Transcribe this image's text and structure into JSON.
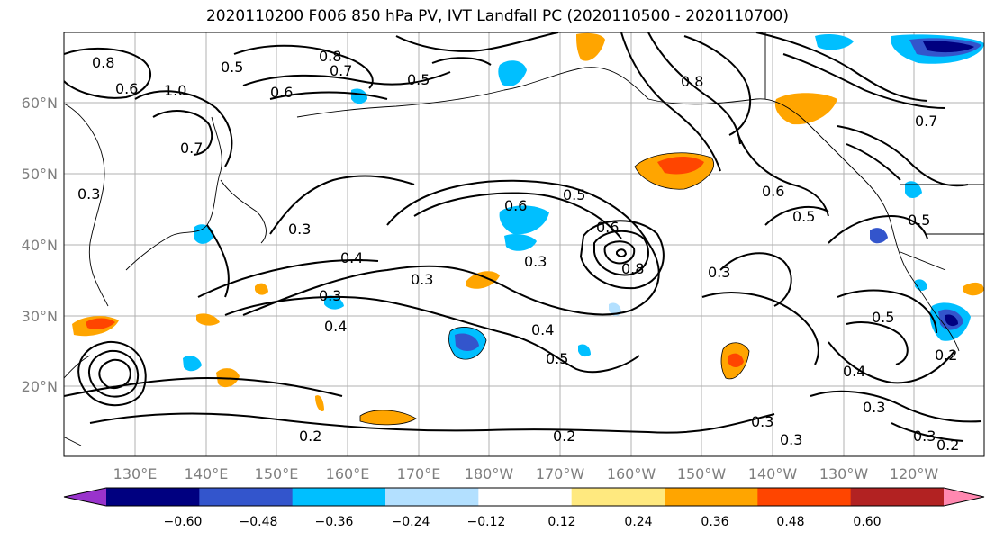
{
  "title": "2020110200 F006 850 hPa PV, IVT Landfall PC (2020110500 - 2020110700)",
  "map": {
    "lat_labels": [
      "60°N",
      "50°N",
      "40°N",
      "30°N",
      "20°N"
    ],
    "lon_labels": [
      "130°E",
      "140°E",
      "150°E",
      "160°E",
      "170°E",
      "180°W",
      "170°W",
      "160°W",
      "150°W",
      "140°W",
      "130°W",
      "120°W"
    ],
    "contour_labels": [
      "1.0",
      "0.8",
      "0.7",
      "0.6",
      "0.5",
      "0.8",
      "0.7",
      "0.6",
      "0.5",
      "0.8",
      "0.3",
      "0.3",
      "0.4",
      "0.3",
      "0.6",
      "0.5",
      "0.3",
      "0.6",
      "0.8",
      "0.3",
      "0.4",
      "0.3",
      "0.4",
      "0.5",
      "0.2",
      "0.2",
      "0.2",
      "0.5",
      "0.6",
      "0.5",
      "0.7",
      "0.5",
      "0.4",
      "0.3",
      "0.3",
      "0.3",
      "0.2",
      "0.3"
    ]
  },
  "colorbar": {
    "colors": [
      "#9933cc",
      "#000080",
      "#3355cc",
      "#00bfff",
      "#b3e0ff",
      "#ffffff",
      "#ffe97f",
      "#ffa500",
      "#ff4500",
      "#b22222",
      "#ff88b0"
    ],
    "tick_labels": [
      "−0.60",
      "−0.48",
      "−0.36",
      "−0.24",
      "−0.12",
      "0.12",
      "0.24",
      "0.36",
      "0.48",
      "0.60"
    ]
  }
}
